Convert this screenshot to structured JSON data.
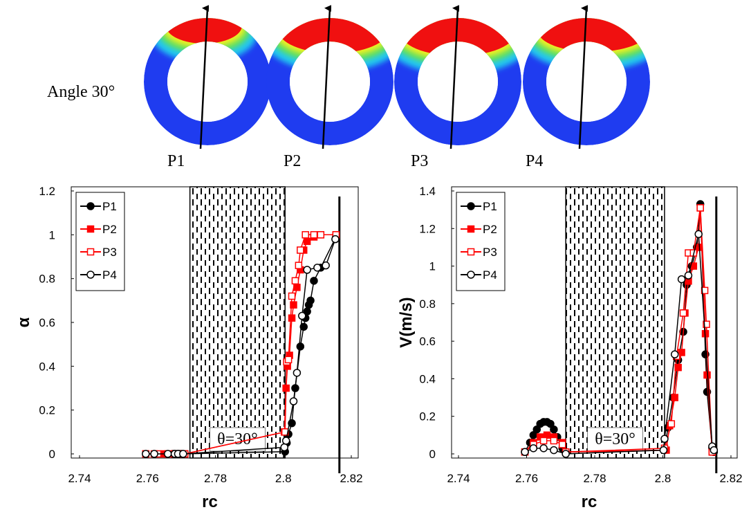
{
  "figure": {
    "label": "Angle 30°",
    "panels": [
      "P1",
      "P2",
      "P3",
      "P4"
    ]
  },
  "chart_data": [
    {
      "type": "line",
      "xlabel": "rc",
      "ylabel": "α",
      "xlim": [
        2.74,
        2.82
      ],
      "xticks": [
        2.74,
        2.76,
        2.78,
        2.8,
        2.82
      ],
      "ylim": [
        0,
        1.2
      ],
      "yticks": [
        0,
        0.2,
        0.4,
        0.6,
        0.8,
        1,
        1.2
      ],
      "legend": "top-left",
      "shaded_region": {
        "x": [
          2.7725,
          2.8005
        ],
        "label": "θ=30°"
      },
      "wall_x": 2.8165,
      "series": [
        {
          "name": "P1",
          "color": "#000000",
          "marker": "filled-circle",
          "x": [
            2.7675,
            2.768,
            2.7685,
            2.769,
            2.7695,
            2.77,
            2.8005,
            2.801,
            2.8015,
            2.8025,
            2.8035,
            2.805,
            2.806,
            2.8065,
            2.807,
            2.8075,
            2.808,
            2.809,
            2.811,
            2.8155
          ],
          "values": [
            0,
            0,
            0,
            0,
            0,
            0,
            0.01,
            0.05,
            0.09,
            0.14,
            0.3,
            0.49,
            0.58,
            0.62,
            0.65,
            0.68,
            0.7,
            0.79,
            0.85,
            0.99
          ]
        },
        {
          "name": "P2",
          "color": "#ff0000",
          "marker": "filled-square",
          "x": [
            2.7595,
            2.762,
            2.765,
            2.768,
            2.771,
            2.8003,
            2.8008,
            2.8012,
            2.8018,
            2.8025,
            2.803,
            2.804,
            2.805,
            2.806,
            2.807,
            2.809,
            2.811,
            2.8155
          ],
          "values": [
            0,
            0,
            0,
            0,
            0,
            0.1,
            0.3,
            0.4,
            0.45,
            0.62,
            0.68,
            0.76,
            0.84,
            0.93,
            0.97,
            0.99,
            1,
            1
          ]
        },
        {
          "name": "P3",
          "color": "#ff0000",
          "marker": "open-square",
          "x": [
            2.7595,
            2.763,
            2.766,
            2.769,
            2.771,
            2.8005,
            2.801,
            2.8015,
            2.8025,
            2.8035,
            2.8045,
            2.805,
            2.8065,
            2.809,
            2.811,
            2.8155
          ],
          "values": [
            0,
            0,
            0,
            0,
            0,
            0.1,
            0.42,
            0.43,
            0.72,
            0.79,
            0.86,
            0.93,
            1,
            1,
            1,
            1
          ]
        },
        {
          "name": "P4",
          "color": "#000000",
          "marker": "open-circle",
          "x": [
            2.7595,
            2.762,
            2.766,
            2.768,
            2.769,
            2.7705,
            2.8003,
            2.8008,
            2.803,
            2.804,
            2.8055,
            2.807,
            2.81,
            2.8125,
            2.8153
          ],
          "values": [
            0,
            0,
            0,
            0,
            0,
            0,
            0.03,
            0.06,
            0.24,
            0.37,
            0.63,
            0.84,
            0.85,
            0.86,
            0.98
          ]
        }
      ]
    },
    {
      "type": "line",
      "xlabel": "rc",
      "ylabel": "V(m/s)",
      "xlim": [
        2.74,
        2.82
      ],
      "xticks": [
        2.74,
        2.76,
        2.78,
        2.8,
        2.82
      ],
      "ylim": [
        0,
        1.4
      ],
      "yticks": [
        0,
        0.2,
        0.4,
        0.6,
        0.8,
        1,
        1.2,
        1.4
      ],
      "legend": "top-left",
      "shaded_region": {
        "x": [
          2.7715,
          2.8005
        ],
        "label": "θ=30°"
      },
      "wall_x": 2.8157,
      "series": [
        {
          "name": "P1",
          "color": "#000000",
          "marker": "filled-circle",
          "x": [
            2.7595,
            2.761,
            2.762,
            2.763,
            2.764,
            2.765,
            2.766,
            2.767,
            2.768,
            2.769,
            2.7705,
            2.7715,
            2.8005,
            2.8015,
            2.803,
            2.8045,
            2.806,
            2.807,
            2.8085,
            2.81,
            2.811,
            2.8125,
            2.813,
            2.8145,
            2.815
          ],
          "values": [
            0.01,
            0.06,
            0.1,
            0.13,
            0.16,
            0.17,
            0.17,
            0.16,
            0.13,
            0.09,
            0.03,
            0.01,
            0.02,
            0.14,
            0.3,
            0.5,
            0.65,
            0.9,
            1.0,
            1.1,
            1.33,
            0.53,
            0.33,
            0.03,
            0.01
          ]
        },
        {
          "name": "P2",
          "color": "#ff0000",
          "marker": "filled-square",
          "x": [
            2.7595,
            2.762,
            2.764,
            2.766,
            2.768,
            2.7705,
            2.7715,
            2.801,
            2.802,
            2.8035,
            2.8045,
            2.8055,
            2.8065,
            2.8075,
            2.809,
            2.8105,
            2.811,
            2.8125,
            2.813,
            2.8145
          ],
          "values": [
            0.01,
            0.06,
            0.09,
            0.1,
            0.09,
            0.06,
            0.01,
            0.02,
            0.15,
            0.3,
            0.46,
            0.54,
            0.75,
            0.92,
            1.0,
            1.1,
            1.31,
            0.64,
            0.42,
            0.01
          ]
        },
        {
          "name": "P3",
          "color": "#ff0000",
          "marker": "open-square",
          "x": [
            2.7595,
            2.762,
            2.765,
            2.768,
            2.7705,
            2.7715,
            2.8005,
            2.8025,
            2.804,
            2.806,
            2.8075,
            2.809,
            2.811,
            2.8123,
            2.8128,
            2.8145
          ],
          "values": [
            0.01,
            0.05,
            0.07,
            0.07,
            0.05,
            0.01,
            0.03,
            0.16,
            0.52,
            0.75,
            1.07,
            1.07,
            1.31,
            0.87,
            0.69,
            0.01
          ]
        },
        {
          "name": "P4",
          "color": "#000000",
          "marker": "open-circle",
          "x": [
            2.7595,
            2.762,
            2.765,
            2.768,
            2.7715,
            2.8002,
            2.8005,
            2.8035,
            2.8055,
            2.8075,
            2.8105,
            2.8145,
            2.815
          ],
          "values": [
            0.01,
            0.03,
            0.03,
            0.02,
            0,
            0.02,
            0.08,
            0.53,
            0.93,
            0.95,
            1.17,
            0.04,
            0.02
          ]
        }
      ]
    }
  ]
}
